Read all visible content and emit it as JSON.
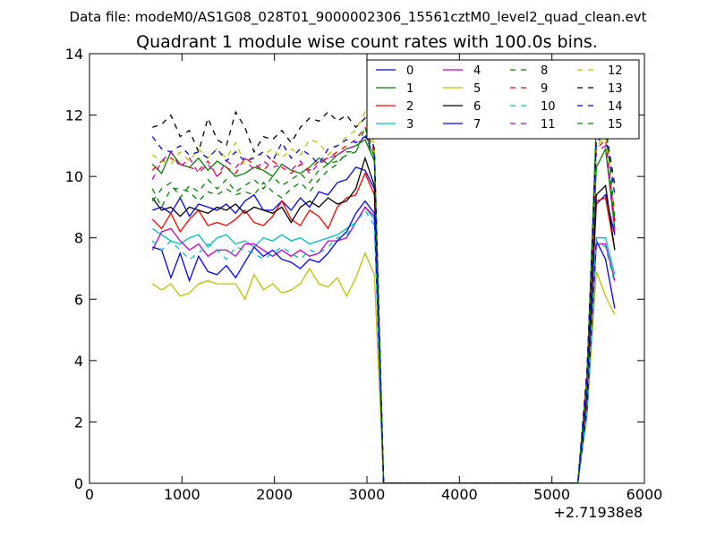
{
  "chart_data": {
    "type": "line",
    "suptitle": "Data file: modeM0/AS1G08_028T01_9000002306_15561cztM0_level2_quad_clean.evt",
    "title": "Quadrant 1 module wise count rates with 100.0s bins.",
    "xlabel": "",
    "ylabel": "",
    "x_offset_label": "+2.71938e8",
    "xlim": [
      0,
      6000
    ],
    "ylim": [
      0,
      14
    ],
    "xticks": [
      0,
      1000,
      2000,
      3000,
      4000,
      5000,
      6000
    ],
    "yticks": [
      0,
      2,
      4,
      6,
      8,
      10,
      12,
      14
    ],
    "grid": false,
    "legend": {
      "placement": "top-right",
      "columns": 4
    },
    "x": [
      680,
      780,
      880,
      980,
      1080,
      1180,
      1280,
      1380,
      1480,
      1580,
      1680,
      1780,
      1880,
      1980,
      2080,
      2180,
      2280,
      2380,
      2480,
      2580,
      2680,
      2780,
      2880,
      2980,
      3080,
      3180,
      3280,
      3380,
      3480,
      3580,
      3680,
      3780,
      3880,
      3980,
      4080,
      4180,
      4280,
      4380,
      4480,
      4580,
      4680,
      4780,
      4880,
      4980,
      5080,
      5180,
      5280,
      5380,
      5480,
      5580,
      5680
    ],
    "series": [
      {
        "name": "0",
        "color": "#0000ff",
        "dash": "solid",
        "values": [
          8.9,
          9.0,
          8.8,
          9.3,
          8.7,
          9.1,
          9.0,
          8.9,
          9.1,
          8.8,
          9.2,
          9.4,
          8.9,
          8.9,
          9.2,
          8.9,
          9.3,
          9.0,
          9.5,
          9.4,
          9.8,
          9.9,
          10.3,
          10.2,
          9.6,
          0,
          0,
          0,
          0,
          0,
          0,
          0,
          0,
          0,
          0,
          0,
          0,
          0,
          0,
          0,
          0,
          0,
          0,
          0,
          0,
          0,
          0,
          2.8,
          9.1,
          9.4,
          8.1
        ]
      },
      {
        "name": "1",
        "color": "#008000",
        "dash": "solid",
        "values": [
          10.4,
          10.1,
          10.8,
          10.4,
          10.3,
          10.6,
          10.2,
          10.5,
          10.3,
          10.0,
          10.1,
          10.3,
          10.2,
          10.0,
          10.4,
          10.2,
          10.1,
          10.3,
          10.6,
          10.4,
          10.7,
          10.9,
          11.0,
          11.2,
          10.5,
          0,
          0,
          0,
          0,
          0,
          0,
          0,
          0,
          0,
          0,
          0,
          0,
          0,
          0,
          0,
          0,
          0,
          0,
          0,
          0,
          0,
          0,
          3.3,
          10.3,
          10.9,
          8.3
        ]
      },
      {
        "name": "2",
        "color": "#ff0000",
        "dash": "solid",
        "values": [
          8.6,
          8.3,
          8.8,
          8.2,
          8.6,
          8.9,
          8.4,
          8.5,
          8.4,
          8.6,
          8.9,
          8.5,
          8.4,
          8.7,
          9.2,
          8.6,
          8.4,
          8.9,
          8.7,
          8.3,
          9.0,
          9.3,
          9.4,
          10.1,
          9.4,
          0,
          0,
          0,
          0,
          0,
          0,
          0,
          0,
          0,
          0,
          0,
          0,
          0,
          0,
          0,
          0,
          0,
          0,
          0,
          0,
          0,
          0,
          2.9,
          9.2,
          9.3,
          7.6
        ]
      },
      {
        "name": "3",
        "color": "#00bfbf",
        "dash": "solid",
        "values": [
          8.3,
          8.1,
          7.9,
          7.8,
          8.0,
          8.1,
          7.7,
          8.0,
          8.1,
          7.8,
          7.9,
          7.7,
          8.0,
          7.9,
          8.1,
          7.9,
          8.0,
          7.8,
          7.9,
          8.0,
          8.1,
          8.3,
          8.5,
          9.0,
          8.6,
          0,
          0,
          0,
          0,
          0,
          0,
          0,
          0,
          0,
          0,
          0,
          0,
          0,
          0,
          0,
          0,
          0,
          0,
          0,
          0,
          0,
          0,
          2.5,
          8.0,
          8.0,
          6.8
        ]
      },
      {
        "name": "4",
        "color": "#bf00bf",
        "dash": "solid",
        "values": [
          7.6,
          8.2,
          8.3,
          7.9,
          7.6,
          7.8,
          7.4,
          7.6,
          7.6,
          7.4,
          7.8,
          7.8,
          7.6,
          7.4,
          7.6,
          7.4,
          7.6,
          7.4,
          7.5,
          7.9,
          7.9,
          8.0,
          8.5,
          9.0,
          8.7,
          0,
          0,
          0,
          0,
          0,
          0,
          0,
          0,
          0,
          0,
          0,
          0,
          0,
          0,
          0,
          0,
          0,
          0,
          0,
          0,
          0,
          0,
          2.4,
          7.8,
          7.8,
          6.6
        ]
      },
      {
        "name": "5",
        "color": "#bfbf00",
        "dash": "solid",
        "values": [
          6.5,
          6.3,
          6.5,
          6.1,
          6.2,
          6.5,
          6.6,
          6.5,
          6.5,
          6.5,
          6.0,
          6.8,
          6.3,
          6.5,
          6.2,
          6.3,
          6.5,
          7.0,
          6.5,
          6.4,
          6.7,
          6.1,
          6.7,
          7.5,
          6.8,
          0,
          0,
          0,
          0,
          0,
          0,
          0,
          0,
          0,
          0,
          0,
          0,
          0,
          0,
          0,
          0,
          0,
          0,
          0,
          0,
          0,
          0,
          2.2,
          6.9,
          6.1,
          5.5
        ]
      },
      {
        "name": "6",
        "color": "#000000",
        "dash": "solid",
        "values": [
          9.3,
          8.9,
          9.0,
          8.7,
          9.0,
          8.9,
          8.8,
          9.0,
          8.9,
          9.1,
          8.8,
          9.0,
          8.9,
          8.8,
          9.0,
          8.5,
          9.0,
          9.2,
          9.0,
          9.3,
          9.1,
          9.2,
          9.6,
          10.6,
          9.7,
          0,
          0,
          0,
          0,
          0,
          0,
          0,
          0,
          0,
          0,
          0,
          0,
          0,
          0,
          0,
          0,
          0,
          0,
          0,
          0,
          0,
          0,
          3.0,
          9.4,
          9.7,
          7.6
        ]
      },
      {
        "name": "7",
        "color": "#0000ff",
        "dash": "solid",
        "values": [
          7.7,
          7.6,
          6.7,
          7.5,
          6.6,
          7.4,
          6.9,
          6.8,
          7.1,
          6.7,
          7.2,
          7.7,
          7.4,
          7.6,
          7.3,
          7.2,
          7.0,
          7.3,
          7.2,
          7.5,
          7.9,
          8.2,
          8.8,
          9.2,
          8.8,
          0,
          0,
          0,
          0,
          0,
          0,
          0,
          0,
          0,
          0,
          0,
          0,
          0,
          0,
          0,
          0,
          0,
          0,
          0,
          0,
          0,
          0,
          2.4,
          7.9,
          7.3,
          5.7
        ]
      },
      {
        "name": "8",
        "color": "#008000",
        "dash": "dashed",
        "values": [
          9.6,
          9.0,
          9.6,
          9.6,
          9.5,
          9.2,
          9.5,
          9.4,
          9.6,
          9.4,
          9.5,
          9.4,
          9.8,
          9.5,
          9.3,
          9.6,
          9.8,
          9.5,
          9.9,
          10.2,
          10.4,
          10.8,
          10.8,
          11.4,
          10.5,
          0,
          0,
          0,
          0,
          0,
          0,
          0,
          0,
          0,
          0,
          0,
          0,
          0,
          0,
          0,
          0,
          0,
          0,
          0,
          0,
          0,
          0,
          3.4,
          11.7,
          11.9,
          8.1
        ]
      },
      {
        "name": "9",
        "color": "#ff0000",
        "dash": "dashed",
        "values": [
          10.2,
          10.5,
          10.6,
          10.4,
          10.3,
          10.2,
          10.5,
          10.0,
          10.3,
          10.1,
          10.6,
          10.4,
          10.2,
          10.5,
          10.3,
          10.1,
          10.4,
          10.2,
          10.5,
          10.6,
          10.8,
          11.0,
          11.2,
          11.6,
          10.8,
          0,
          0,
          0,
          0,
          0,
          0,
          0,
          0,
          0,
          0,
          0,
          0,
          0,
          0,
          0,
          0,
          0,
          0,
          0,
          0,
          0,
          0,
          3.3,
          10.9,
          11.2,
          8.5
        ]
      },
      {
        "name": "10",
        "color": "#00bfbf",
        "dash": "dashed",
        "values": [
          7.9,
          7.6,
          7.9,
          7.6,
          7.3,
          7.5,
          7.8,
          7.6,
          7.3,
          7.7,
          7.6,
          7.5,
          7.3,
          7.5,
          7.7,
          7.5,
          7.3,
          7.6,
          7.5,
          7.7,
          8.0,
          8.1,
          8.5,
          8.9,
          8.4,
          0,
          0,
          0,
          0,
          0,
          0,
          0,
          0,
          0,
          0,
          0,
          0,
          0,
          0,
          0,
          0,
          0,
          0,
          0,
          0,
          0,
          0,
          2.4,
          7.9,
          7.7,
          6.5
        ]
      },
      {
        "name": "11",
        "color": "#bf00bf",
        "dash": "dashed",
        "values": [
          9.9,
          10.5,
          10.8,
          10.3,
          10.6,
          10.1,
          10.4,
          10.0,
          10.5,
          10.3,
          10.6,
          10.2,
          10.5,
          10.3,
          10.4,
          10.2,
          10.5,
          10.1,
          10.4,
          10.6,
          10.7,
          10.9,
          11.0,
          11.3,
          10.9,
          0,
          0,
          0,
          0,
          0,
          0,
          0,
          0,
          0,
          0,
          0,
          0,
          0,
          0,
          0,
          0,
          0,
          0,
          0,
          0,
          0,
          0,
          3.2,
          10.8,
          11.0,
          8.2
        ]
      },
      {
        "name": "12",
        "color": "#bfbf00",
        "dash": "dashed",
        "values": [
          10.7,
          10.5,
          10.4,
          10.8,
          10.5,
          10.9,
          10.6,
          10.9,
          10.6,
          11.1,
          10.4,
          10.7,
          10.7,
          10.9,
          10.6,
          10.9,
          10.7,
          11.2,
          11.1,
          10.7,
          11.0,
          11.3,
          11.5,
          12.1,
          11.0,
          0,
          0,
          0,
          0,
          0,
          0,
          0,
          0,
          0,
          0,
          0,
          0,
          0,
          0,
          0,
          0,
          0,
          0,
          0,
          0,
          0,
          0,
          3.5,
          11.0,
          11.3,
          8.9
        ]
      },
      {
        "name": "13",
        "color": "#000000",
        "dash": "dashed",
        "values": [
          11.6,
          11.7,
          12.0,
          11.3,
          11.5,
          10.8,
          11.9,
          11.2,
          11.0,
          12.1,
          11.6,
          10.8,
          11.3,
          11.2,
          11.5,
          11.1,
          11.6,
          11.9,
          11.8,
          12.1,
          11.8,
          12.0,
          11.6,
          11.9,
          10.9,
          0,
          0,
          0,
          0,
          0,
          0,
          0,
          0,
          0,
          0,
          0,
          0,
          0,
          0,
          0,
          0,
          0,
          0,
          0,
          0,
          0,
          0,
          3.7,
          11.3,
          11.6,
          9.7
        ]
      },
      {
        "name": "14",
        "color": "#0000ff",
        "dash": "dashed",
        "values": [
          11.3,
          10.9,
          10.8,
          11.0,
          10.7,
          10.8,
          10.6,
          10.9,
          10.5,
          10.8,
          10.5,
          10.6,
          10.8,
          10.5,
          11.1,
          10.6,
          10.9,
          10.7,
          10.4,
          10.9,
          11.0,
          11.2,
          11.1,
          11.3,
          10.7,
          0,
          0,
          0,
          0,
          0,
          0,
          0,
          0,
          0,
          0,
          0,
          0,
          0,
          0,
          0,
          0,
          0,
          0,
          0,
          0,
          0,
          0,
          3.6,
          11.1,
          11.4,
          9.4
        ]
      },
      {
        "name": "15",
        "color": "#008000",
        "dash": "dashed",
        "values": [
          9.2,
          9.6,
          9.8,
          9.3,
          9.7,
          9.5,
          9.9,
          9.6,
          9.9,
          9.5,
          9.7,
          9.9,
          9.6,
          10.0,
          9.7,
          9.9,
          10.1,
          9.8,
          10.2,
          10.4,
          10.5,
          10.7,
          10.8,
          11.6,
          10.6,
          0,
          0,
          0,
          0,
          0,
          0,
          0,
          0,
          0,
          0,
          0,
          0,
          0,
          0,
          0,
          0,
          0,
          0,
          0,
          0,
          0,
          0,
          3.4,
          11.8,
          12.0,
          8.6
        ]
      }
    ]
  }
}
